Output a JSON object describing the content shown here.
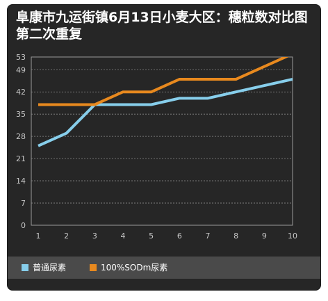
{
  "title": "阜康市九运街镇6月13日小麦大区：穗粒数对比图第二次重复",
  "chart_data": {
    "type": "line",
    "title": "阜康市九运街镇6月13日小麦大区：穗粒数对比图第二次重复",
    "x": [
      1,
      2,
      3,
      4,
      5,
      6,
      7,
      8,
      9,
      10
    ],
    "xlabel": "",
    "ylabel": "",
    "ylim": [
      0,
      53
    ],
    "yticks": [
      0,
      7,
      14,
      21,
      28,
      35,
      42,
      49,
      53
    ],
    "grid": true,
    "legend_position": "bottom",
    "series": [
      {
        "name": "普通尿素",
        "color": "#87ceeb",
        "values": [
          25,
          29,
          38,
          38,
          38,
          40,
          40,
          42,
          44,
          46
        ]
      },
      {
        "name": "100%SODm尿素",
        "color": "#e8891e",
        "values": [
          38,
          38,
          38,
          42,
          42,
          46,
          46,
          46,
          50,
          54
        ]
      }
    ]
  }
}
